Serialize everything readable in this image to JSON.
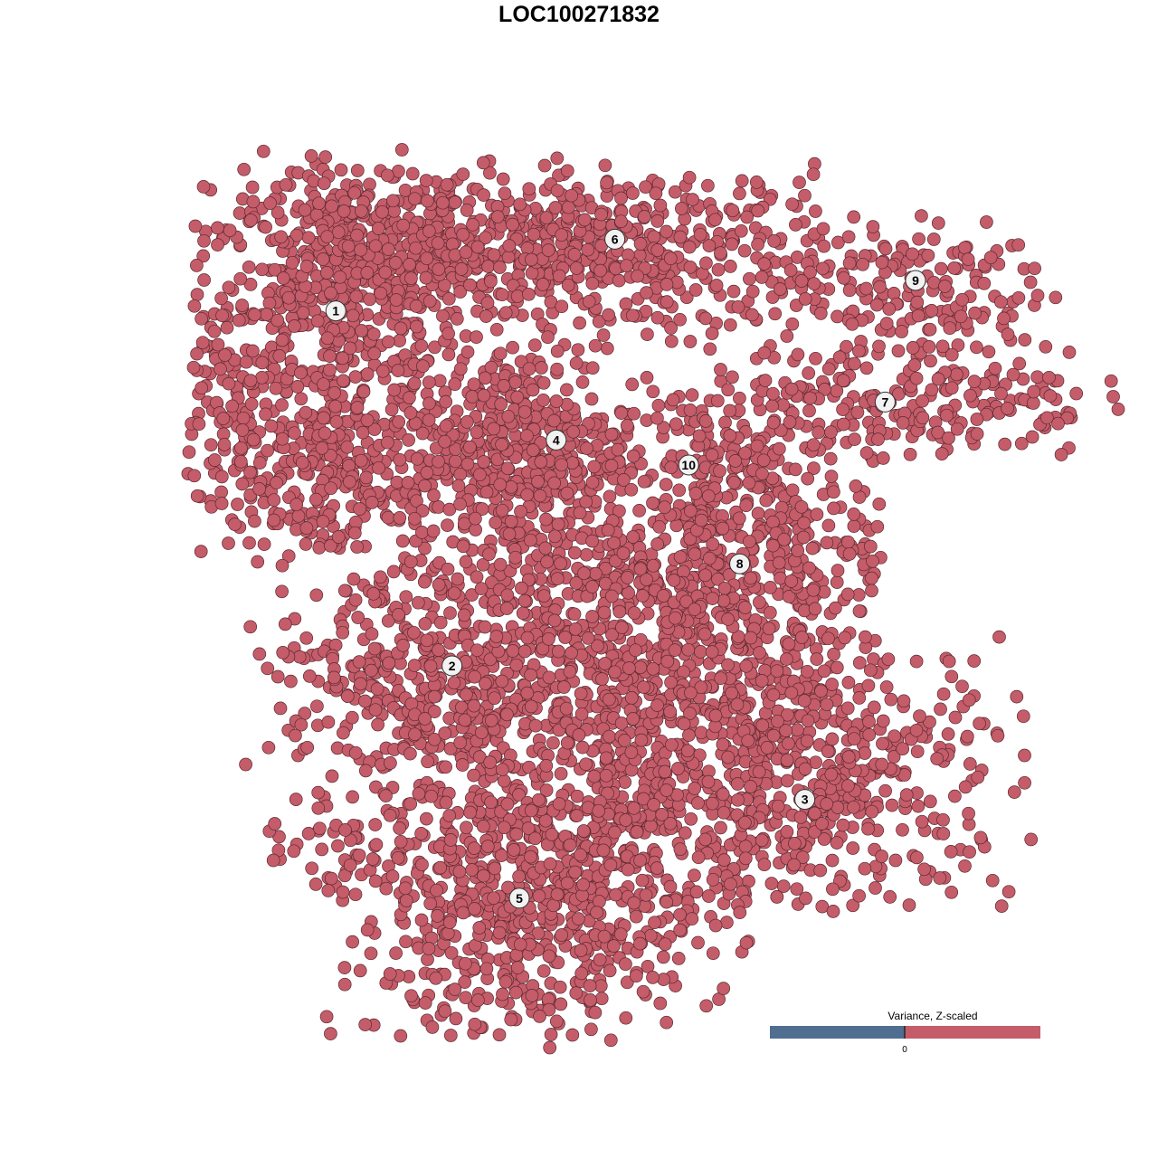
{
  "chart_data": {
    "type": "scatter",
    "title": "LOC100271832",
    "xlabel": "",
    "ylabel": "",
    "axes_visible": false,
    "grid": false,
    "xlim": [
      -40,
      40
    ],
    "ylim": [
      -40,
      40
    ],
    "point_color": "#c55c69",
    "point_outline": "#5a2a30",
    "cluster_labels": [
      {
        "label": "1",
        "x": -22.4,
        "y": 24.7
      },
      {
        "label": "2",
        "x": -11.7,
        "y": -8.0
      },
      {
        "label": "3",
        "x": 20.8,
        "y": -20.3
      },
      {
        "label": "4",
        "x": -2.1,
        "y": 12.8
      },
      {
        "label": "5",
        "x": -5.5,
        "y": -29.4
      },
      {
        "label": "6",
        "x": 3.3,
        "y": 31.3
      },
      {
        "label": "7",
        "x": 28.2,
        "y": 16.3
      },
      {
        "label": "8",
        "x": 14.8,
        "y": 1.4
      },
      {
        "label": "9",
        "x": 31.0,
        "y": 27.5
      },
      {
        "label": "10",
        "x": 10.1,
        "y": 10.5
      }
    ],
    "legend": {
      "title": "Variance, Z-scaled",
      "placement": "bottom-right",
      "low_color": "#506e90",
      "high_color": "#c55c69",
      "tick_label": "0"
    }
  }
}
